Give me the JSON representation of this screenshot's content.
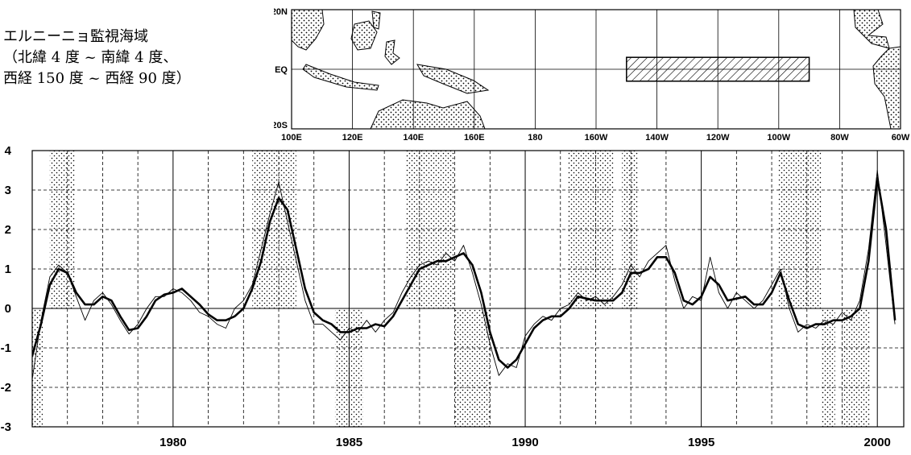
{
  "caption": {
    "line1": "エルニーニョ監視海域",
    "line2": "（北緯 4 度 ~ 南緯 4 度、",
    "line3": "西経 150 度 ~ 西経 90 度）"
  },
  "map": {
    "lat_labels": [
      "20N",
      "EQ",
      "20S"
    ],
    "lon_labels": [
      "100E",
      "120E",
      "140E",
      "160E",
      "180",
      "160W",
      "140W",
      "120W",
      "100W",
      "80W",
      "60W"
    ],
    "region_lon": [
      -150,
      -90
    ],
    "region_lat": [
      -4,
      4
    ]
  },
  "chart_data": {
    "type": "line",
    "xlim": [
      1976,
      2000.75
    ],
    "ylim": [
      -3,
      4
    ],
    "x_ticks": [
      1980,
      1985,
      1990,
      1995,
      2000
    ],
    "y_ticks": [
      4,
      3,
      2,
      1,
      0,
      -1,
      -2,
      -3
    ],
    "grid": true,
    "shaded_periods": [
      {
        "kind": "el_nino",
        "start": 1976.5,
        "end": 1977.2
      },
      {
        "kind": "el_nino",
        "start": 1982.25,
        "end": 1983.5
      },
      {
        "kind": "el_nino",
        "start": 1986.6,
        "end": 1988.0
      },
      {
        "kind": "el_nino",
        "start": 1991.2,
        "end": 1992.5
      },
      {
        "kind": "el_nino",
        "start": 1992.75,
        "end": 1993.2
      },
      {
        "kind": "el_nino",
        "start": 1997.2,
        "end": 1998.4
      },
      {
        "kind": "la_nina",
        "start": 1976.0,
        "end": 1976.3
      },
      {
        "kind": "la_nina",
        "start": 1984.6,
        "end": 1985.4
      },
      {
        "kind": "la_nina",
        "start": 1988.0,
        "end": 1989.0
      },
      {
        "kind": "la_nina",
        "start": 1998.4,
        "end": 1998.8
      },
      {
        "kind": "la_nina",
        "start": 1999.0,
        "end": 1999.8
      }
    ],
    "series": [
      {
        "style": "thick",
        "points": [
          [
            1976.0,
            -1.2
          ],
          [
            1976.25,
            -0.4
          ],
          [
            1976.5,
            0.6
          ],
          [
            1976.75,
            1.0
          ],
          [
            1977.0,
            0.9
          ],
          [
            1977.25,
            0.4
          ],
          [
            1977.5,
            0.1
          ],
          [
            1977.75,
            0.1
          ],
          [
            1978.0,
            0.3
          ],
          [
            1978.25,
            0.2
          ],
          [
            1978.5,
            -0.2
          ],
          [
            1978.75,
            -0.55
          ],
          [
            1979.0,
            -0.5
          ],
          [
            1979.25,
            -0.2
          ],
          [
            1979.5,
            0.2
          ],
          [
            1979.75,
            0.35
          ],
          [
            1980.0,
            0.4
          ],
          [
            1980.25,
            0.5
          ],
          [
            1980.5,
            0.3
          ],
          [
            1980.75,
            0.1
          ],
          [
            1981.0,
            -0.15
          ],
          [
            1981.25,
            -0.3
          ],
          [
            1981.5,
            -0.3
          ],
          [
            1981.75,
            -0.2
          ],
          [
            1982.0,
            0.0
          ],
          [
            1982.25,
            0.5
          ],
          [
            1982.5,
            1.2
          ],
          [
            1982.75,
            2.2
          ],
          [
            1983.0,
            2.8
          ],
          [
            1983.25,
            2.5
          ],
          [
            1983.5,
            1.5
          ],
          [
            1983.75,
            0.5
          ],
          [
            1984.0,
            -0.1
          ],
          [
            1984.25,
            -0.3
          ],
          [
            1984.5,
            -0.4
          ],
          [
            1984.75,
            -0.6
          ],
          [
            1985.0,
            -0.6
          ],
          [
            1985.25,
            -0.5
          ],
          [
            1985.5,
            -0.5
          ],
          [
            1985.75,
            -0.4
          ],
          [
            1986.0,
            -0.45
          ],
          [
            1986.25,
            -0.2
          ],
          [
            1986.5,
            0.2
          ],
          [
            1986.75,
            0.6
          ],
          [
            1987.0,
            1.0
          ],
          [
            1987.25,
            1.1
          ],
          [
            1987.5,
            1.2
          ],
          [
            1987.75,
            1.2
          ],
          [
            1988.0,
            1.3
          ],
          [
            1988.25,
            1.4
          ],
          [
            1988.5,
            1.1
          ],
          [
            1988.75,
            0.4
          ],
          [
            1989.0,
            -0.6
          ],
          [
            1989.25,
            -1.3
          ],
          [
            1989.5,
            -1.5
          ],
          [
            1989.75,
            -1.3
          ],
          [
            1990.0,
            -0.9
          ],
          [
            1990.25,
            -0.5
          ],
          [
            1990.5,
            -0.3
          ],
          [
            1990.75,
            -0.2
          ],
          [
            1991.0,
            -0.2
          ],
          [
            1991.25,
            0.0
          ],
          [
            1991.5,
            0.3
          ],
          [
            1991.75,
            0.25
          ],
          [
            1992.0,
            0.2
          ],
          [
            1992.25,
            0.2
          ],
          [
            1992.5,
            0.2
          ],
          [
            1992.75,
            0.4
          ],
          [
            1993.0,
            0.9
          ],
          [
            1993.25,
            0.9
          ],
          [
            1993.5,
            1.0
          ],
          [
            1993.75,
            1.3
          ],
          [
            1994.0,
            1.3
          ],
          [
            1994.25,
            0.9
          ],
          [
            1994.5,
            0.2
          ],
          [
            1994.75,
            0.1
          ],
          [
            1995.0,
            0.3
          ],
          [
            1995.25,
            0.8
          ],
          [
            1995.5,
            0.6
          ],
          [
            1995.75,
            0.2
          ],
          [
            1996.0,
            0.25
          ],
          [
            1996.25,
            0.3
          ],
          [
            1996.5,
            0.1
          ],
          [
            1996.75,
            0.1
          ],
          [
            1997.0,
            0.4
          ],
          [
            1997.25,
            0.9
          ],
          [
            1997.5,
            0.2
          ],
          [
            1997.75,
            -0.4
          ],
          [
            1998.0,
            -0.5
          ],
          [
            1998.25,
            -0.4
          ],
          [
            1998.5,
            -0.4
          ],
          [
            1998.75,
            -0.3
          ],
          [
            1999.0,
            -0.3
          ],
          [
            1999.25,
            -0.2
          ],
          [
            1999.5,
            0.0
          ],
          [
            1999.75,
            1.2
          ],
          [
            2000.0,
            3.3
          ],
          [
            2000.25,
            2.0
          ],
          [
            2000.5,
            -0.3
          ]
        ]
      },
      {
        "style": "thin",
        "points": [
          [
            1976.0,
            -1.8
          ],
          [
            1976.25,
            -0.3
          ],
          [
            1976.5,
            0.8
          ],
          [
            1976.75,
            1.1
          ],
          [
            1977.0,
            0.9
          ],
          [
            1977.25,
            0.3
          ],
          [
            1977.5,
            -0.3
          ],
          [
            1977.75,
            0.2
          ],
          [
            1978.0,
            0.4
          ],
          [
            1978.25,
            0.1
          ],
          [
            1978.5,
            -0.3
          ],
          [
            1978.75,
            -0.65
          ],
          [
            1979.0,
            -0.4
          ],
          [
            1979.25,
            0.0
          ],
          [
            1979.5,
            0.3
          ],
          [
            1979.75,
            0.3
          ],
          [
            1980.0,
            0.5
          ],
          [
            1980.25,
            0.4
          ],
          [
            1980.5,
            0.2
          ],
          [
            1980.75,
            -0.1
          ],
          [
            1981.0,
            -0.2
          ],
          [
            1981.25,
            -0.4
          ],
          [
            1981.5,
            -0.5
          ],
          [
            1981.75,
            0.0
          ],
          [
            1982.0,
            0.2
          ],
          [
            1982.25,
            0.6
          ],
          [
            1982.5,
            1.5
          ],
          [
            1982.75,
            2.4
          ],
          [
            1983.0,
            3.2
          ],
          [
            1983.25,
            2.2
          ],
          [
            1983.5,
            1.2
          ],
          [
            1983.75,
            0.2
          ],
          [
            1984.0,
            -0.4
          ],
          [
            1984.25,
            -0.4
          ],
          [
            1984.5,
            -0.6
          ],
          [
            1984.75,
            -0.8
          ],
          [
            1985.0,
            -0.5
          ],
          [
            1985.25,
            -0.6
          ],
          [
            1985.5,
            -0.3
          ],
          [
            1985.75,
            -0.6
          ],
          [
            1986.0,
            -0.3
          ],
          [
            1986.25,
            -0.1
          ],
          [
            1986.5,
            0.4
          ],
          [
            1986.75,
            0.8
          ],
          [
            1987.0,
            1.1
          ],
          [
            1987.25,
            1.2
          ],
          [
            1987.5,
            1.1
          ],
          [
            1987.75,
            1.4
          ],
          [
            1988.0,
            1.2
          ],
          [
            1988.25,
            1.6
          ],
          [
            1988.5,
            0.9
          ],
          [
            1988.75,
            0.1
          ],
          [
            1989.0,
            -0.9
          ],
          [
            1989.25,
            -1.7
          ],
          [
            1989.5,
            -1.4
          ],
          [
            1989.75,
            -1.5
          ],
          [
            1990.0,
            -0.7
          ],
          [
            1990.25,
            -0.4
          ],
          [
            1990.5,
            -0.2
          ],
          [
            1990.75,
            -0.3
          ],
          [
            1991.0,
            0.0
          ],
          [
            1991.25,
            0.1
          ],
          [
            1991.5,
            0.4
          ],
          [
            1991.75,
            0.2
          ],
          [
            1992.0,
            0.3
          ],
          [
            1992.25,
            0.1
          ],
          [
            1992.5,
            0.3
          ],
          [
            1992.75,
            0.6
          ],
          [
            1993.0,
            1.1
          ],
          [
            1993.25,
            0.8
          ],
          [
            1993.5,
            1.2
          ],
          [
            1993.75,
            1.4
          ],
          [
            1994.0,
            1.6
          ],
          [
            1994.25,
            0.7
          ],
          [
            1994.5,
            0.0
          ],
          [
            1994.75,
            0.3
          ],
          [
            1995.0,
            0.2
          ],
          [
            1995.25,
            1.3
          ],
          [
            1995.5,
            0.4
          ],
          [
            1995.75,
            0.0
          ],
          [
            1996.0,
            0.4
          ],
          [
            1996.25,
            0.2
          ],
          [
            1996.5,
            0.0
          ],
          [
            1996.75,
            0.2
          ],
          [
            1997.0,
            0.6
          ],
          [
            1997.25,
            1.0
          ],
          [
            1997.5,
            0.0
          ],
          [
            1997.75,
            -0.6
          ],
          [
            1998.0,
            -0.4
          ],
          [
            1998.25,
            -0.5
          ],
          [
            1998.5,
            -0.3
          ],
          [
            1998.75,
            -0.4
          ],
          [
            1999.0,
            -0.1
          ],
          [
            1999.25,
            -0.3
          ],
          [
            1999.5,
            0.2
          ],
          [
            1999.75,
            1.5
          ],
          [
            2000.0,
            3.5
          ],
          [
            2000.25,
            1.6
          ],
          [
            2000.5,
            -0.4
          ]
        ]
      }
    ]
  }
}
